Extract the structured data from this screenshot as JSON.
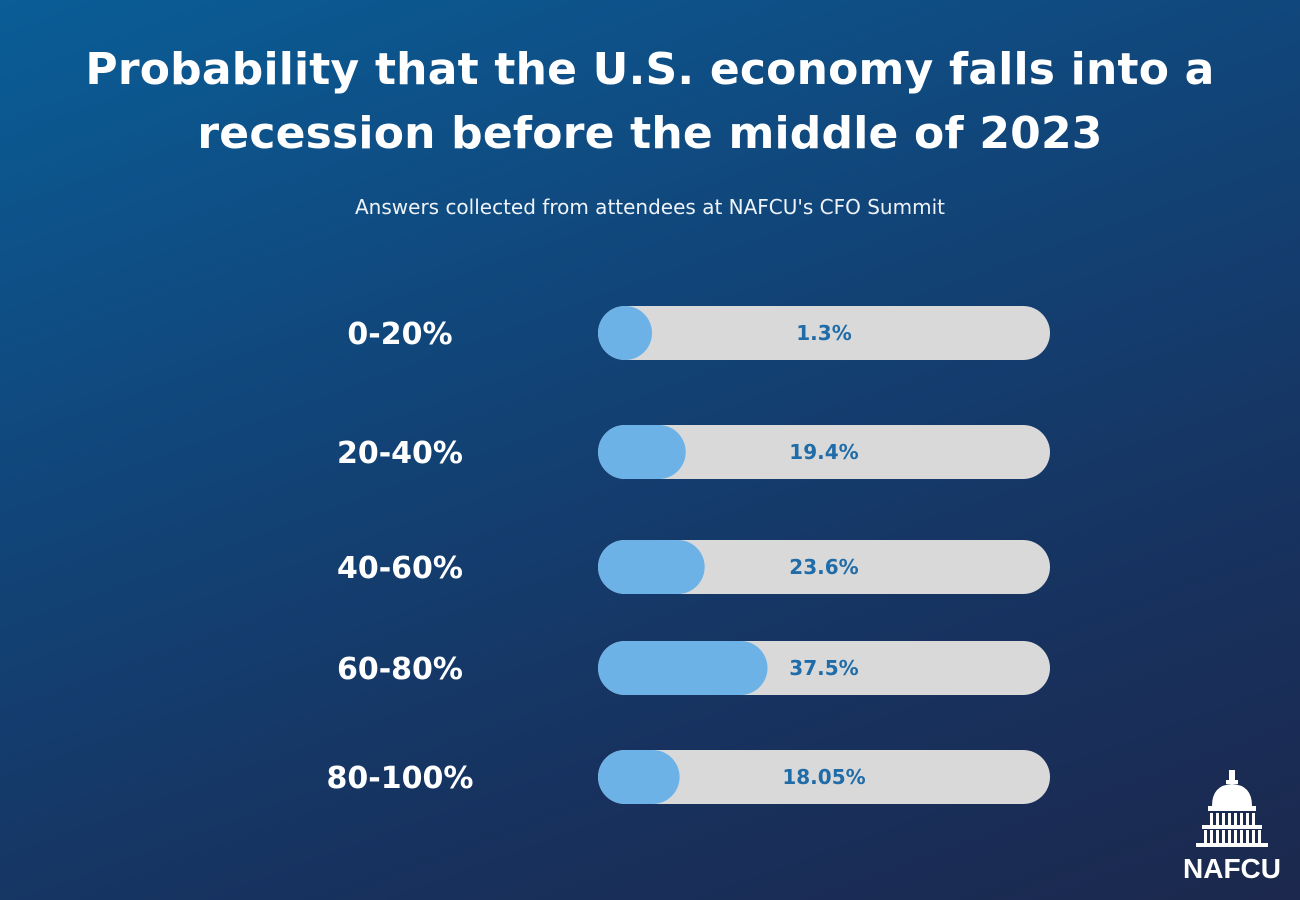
{
  "title": "Probability that the U.S. economy falls into a recession before the middle of 2023",
  "subtitle": "Answers collected from attendees at NAFCU's CFO Summit",
  "logo_text": "NAFCU",
  "colors": {
    "bar_fill": "#6cb2e6",
    "bar_track": "#d9d9d9",
    "value_text": "#1f6ca8",
    "label_text": "#ffffff"
  },
  "chart_data": {
    "type": "bar",
    "orientation": "horizontal",
    "categories": [
      "0-20%",
      "20-40%",
      "40-60%",
      "60-80%",
      "80-100%"
    ],
    "values": [
      1.3,
      19.4,
      23.6,
      37.5,
      18.05
    ],
    "value_labels": [
      "1.3%",
      "19.4%",
      "23.6%",
      "37.5%",
      "18.05%"
    ],
    "xlim": [
      0,
      100
    ],
    "unit": "%",
    "title": "Probability that the U.S. economy falls into a recession before the middle of 2023",
    "subtitle": "Answers collected from attendees at NAFCU's CFO Summit",
    "xlabel": "",
    "ylabel": "",
    "grid": false,
    "legend": "none"
  }
}
